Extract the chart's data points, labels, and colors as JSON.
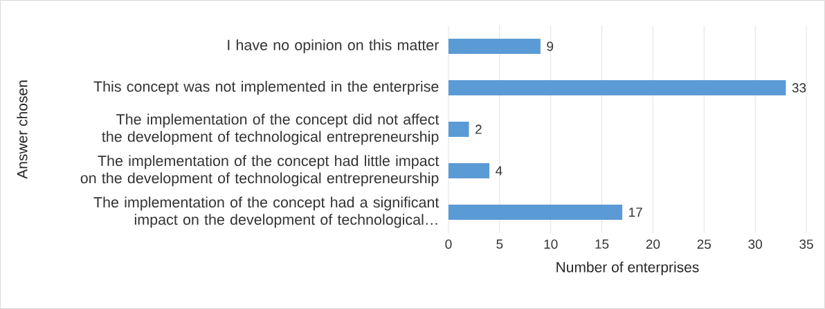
{
  "chart_data": {
    "type": "bar",
    "orientation": "horizontal",
    "categories": [
      "I have no opinion on this matter",
      "This concept was not implemented in the enterprise",
      "The implementation of the concept did not affect the development of technological entrepreneurship",
      "The implementation of the concept had little impact on the development of technological entrepreneurship",
      "The implementation of the concept had a significant impact on the development of technological…"
    ],
    "values": [
      9,
      33,
      2,
      4,
      17
    ],
    "color": "#5b9bd5",
    "xlim": [
      0,
      35
    ],
    "xticks": [
      0,
      5,
      10,
      15,
      20,
      25,
      30,
      35
    ],
    "xlabel": "Number of enterprises",
    "ylabel": "Answer chosen",
    "grid": "x",
    "data_labels": true,
    "legend": false
  }
}
